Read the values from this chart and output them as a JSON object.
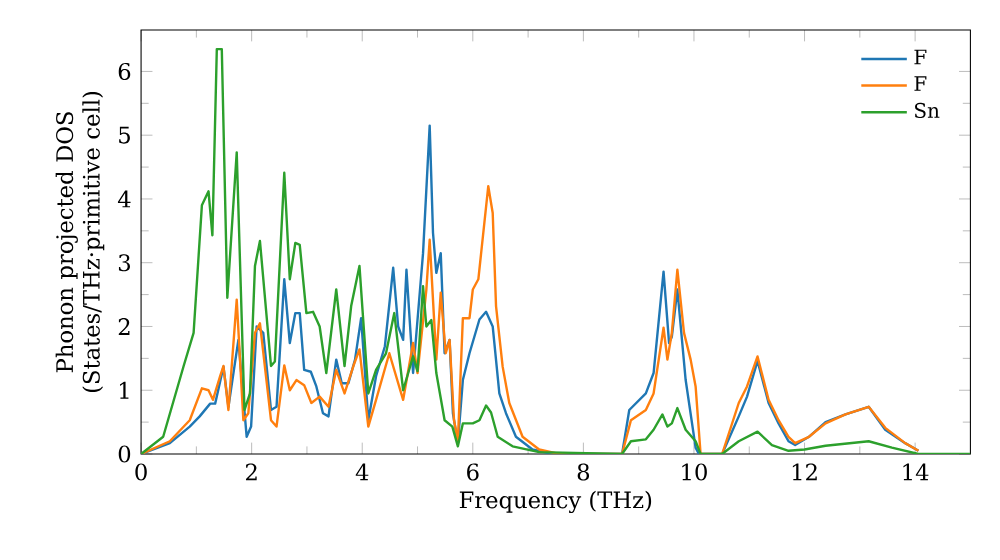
{
  "chart_data": {
    "type": "line",
    "xlabel": "Frequency (THz)",
    "ylabel": "Phonon projected DOS (States/THz·primitive cell)",
    "xlim": [
      0,
      15
    ],
    "ylim": [
      0,
      6.65
    ],
    "xticks": [
      0,
      2,
      4,
      6,
      8,
      10,
      12,
      14
    ],
    "yticks": [
      0,
      1,
      2,
      3,
      4,
      5,
      6
    ],
    "legend": "top right",
    "line_style": "solid",
    "series": [
      {
        "name": "F",
        "color": "#1f77b4",
        "x": [
          0,
          0.52,
          0.88,
          1.06,
          1.25,
          1.34,
          1.49,
          1.58,
          1.76,
          1.91,
          1.99,
          2.09,
          2.21,
          2.35,
          2.45,
          2.59,
          2.69,
          2.79,
          2.87,
          2.95,
          3.07,
          3.17,
          3.29,
          3.39,
          3.53,
          3.63,
          3.75,
          3.87,
          3.98,
          4.11,
          4.25,
          4.41,
          4.56,
          4.65,
          4.74,
          4.8,
          4.92,
          5.1,
          5.22,
          5.28,
          5.34,
          5.42,
          5.49,
          5.58,
          5.64,
          5.73,
          5.82,
          5.94,
          6.12,
          6.24,
          6.36,
          6.48,
          6.6,
          6.78,
          7.08,
          7.44,
          8.7,
          8.83,
          9.13,
          9.27,
          9.45,
          9.55,
          9.6,
          9.7,
          9.85,
          10.03,
          10.09,
          10.51,
          10.81,
          10.96,
          11.15,
          11.35,
          11.53,
          11.71,
          11.83,
          12.08,
          12.38,
          12.74,
          13.16,
          13.46,
          13.82,
          14.06
        ],
        "values": [
          0,
          0.17,
          0.43,
          0.59,
          0.79,
          0.79,
          1.37,
          0.74,
          1.79,
          0.27,
          0.43,
          2.0,
          1.9,
          0.69,
          0.74,
          2.74,
          1.74,
          2.21,
          2.21,
          1.32,
          1.29,
          1.06,
          0.64,
          0.59,
          1.48,
          1.11,
          1.11,
          1.48,
          2.13,
          0.53,
          1.22,
          1.69,
          2.92,
          2.0,
          1.79,
          2.89,
          1.27,
          3.15,
          5.15,
          3.47,
          2.84,
          3.15,
          1.58,
          1.79,
          0.64,
          0.17,
          1.16,
          1.58,
          2.11,
          2.23,
          2.0,
          0.95,
          0.64,
          0.27,
          0.07,
          0,
          0,
          0.69,
          0.95,
          1.27,
          2.86,
          1.74,
          1.84,
          2.58,
          1.16,
          0.1,
          0,
          0,
          0.59,
          0.9,
          1.46,
          0.8,
          0.48,
          0.2,
          0.14,
          0.27,
          0.5,
          0.62,
          0.74,
          0.38,
          0.17,
          0.05
        ]
      },
      {
        "name": "F",
        "color": "#ff7f0e",
        "x": [
          0,
          0.52,
          0.88,
          1.1,
          1.22,
          1.3,
          1.43,
          1.49,
          1.58,
          1.73,
          1.85,
          1.94,
          2.06,
          2.15,
          2.35,
          2.45,
          2.59,
          2.69,
          2.81,
          2.95,
          3.08,
          3.23,
          3.39,
          3.53,
          3.68,
          3.84,
          3.95,
          4.11,
          4.25,
          4.49,
          4.74,
          4.92,
          5.0,
          5.16,
          5.22,
          5.34,
          5.42,
          5.51,
          5.58,
          5.66,
          5.73,
          5.82,
          5.94,
          6.0,
          6.1,
          6.28,
          6.36,
          6.42,
          6.54,
          6.66,
          6.9,
          7.2,
          7.56,
          8.7,
          8.86,
          9.13,
          9.27,
          9.45,
          9.52,
          9.6,
          9.7,
          9.82,
          9.94,
          10.03,
          10.12,
          10.51,
          10.81,
          10.96,
          11.15,
          11.35,
          11.53,
          11.71,
          11.83,
          12.08,
          12.38,
          12.74,
          13.16,
          13.46,
          13.82,
          14.06
        ],
        "values": [
          0,
          0.2,
          0.53,
          1.03,
          1.0,
          0.85,
          1.22,
          1.38,
          0.69,
          2.42,
          0.53,
          0.64,
          1.9,
          2.05,
          0.53,
          0.43,
          1.39,
          1.0,
          1.16,
          1.08,
          0.8,
          0.9,
          0.74,
          1.32,
          0.95,
          1.38,
          1.64,
          0.43,
          0.85,
          1.58,
          0.85,
          1.74,
          1.27,
          2.58,
          3.36,
          1.48,
          2.53,
          1.58,
          1.79,
          0.53,
          0.2,
          2.13,
          2.13,
          2.58,
          2.74,
          4.2,
          3.78,
          2.32,
          1.37,
          0.8,
          0.27,
          0.07,
          0,
          0,
          0.53,
          0.69,
          0.95,
          1.98,
          1.48,
          1.9,
          2.89,
          1.9,
          1.48,
          1.06,
          0,
          0,
          0.8,
          1.06,
          1.53,
          0.85,
          0.53,
          0.27,
          0.17,
          0.27,
          0.48,
          0.62,
          0.74,
          0.41,
          0.17,
          0.05
        ]
      },
      {
        "name": "Sn",
        "color": "#2ca02c",
        "x": [
          0,
          0.4,
          0.77,
          0.95,
          1.1,
          1.22,
          1.29,
          1.37,
          1.46,
          1.56,
          1.73,
          1.87,
          1.97,
          2.06,
          2.15,
          2.35,
          2.42,
          2.59,
          2.69,
          2.79,
          2.87,
          2.99,
          3.11,
          3.23,
          3.35,
          3.53,
          3.68,
          3.8,
          3.95,
          4.11,
          4.25,
          4.43,
          4.58,
          4.74,
          4.92,
          5.0,
          5.1,
          5.16,
          5.25,
          5.34,
          5.49,
          5.63,
          5.73,
          5.82,
          6.0,
          6.12,
          6.24,
          6.33,
          6.45,
          6.72,
          7.2,
          8.7,
          8.86,
          9.13,
          9.27,
          9.43,
          9.52,
          9.6,
          9.7,
          9.85,
          10.03,
          10.12,
          10.51,
          10.81,
          11.15,
          11.41,
          11.71,
          12.0,
          12.38,
          13.16,
          13.58,
          14.06,
          15
        ],
        "values": [
          0,
          0.27,
          1.38,
          1.9,
          3.9,
          4.12,
          3.43,
          6.35,
          6.35,
          2.45,
          4.73,
          0.69,
          0.95,
          2.95,
          3.34,
          1.38,
          1.45,
          4.41,
          2.74,
          3.31,
          3.28,
          2.21,
          2.23,
          2.0,
          1.27,
          2.58,
          1.38,
          2.32,
          2.95,
          0.95,
          1.32,
          1.58,
          2.21,
          1.0,
          1.53,
          1.3,
          2.63,
          2.0,
          2.1,
          1.27,
          0.53,
          0.43,
          0.12,
          0.48,
          0.48,
          0.53,
          0.76,
          0.65,
          0.27,
          0.12,
          0.03,
          0,
          0.2,
          0.23,
          0.38,
          0.62,
          0.43,
          0.48,
          0.72,
          0.38,
          0.2,
          0,
          0,
          0.2,
          0.35,
          0.14,
          0.05,
          0.07,
          0.13,
          0.2,
          0.1,
          0,
          0
        ]
      }
    ]
  }
}
